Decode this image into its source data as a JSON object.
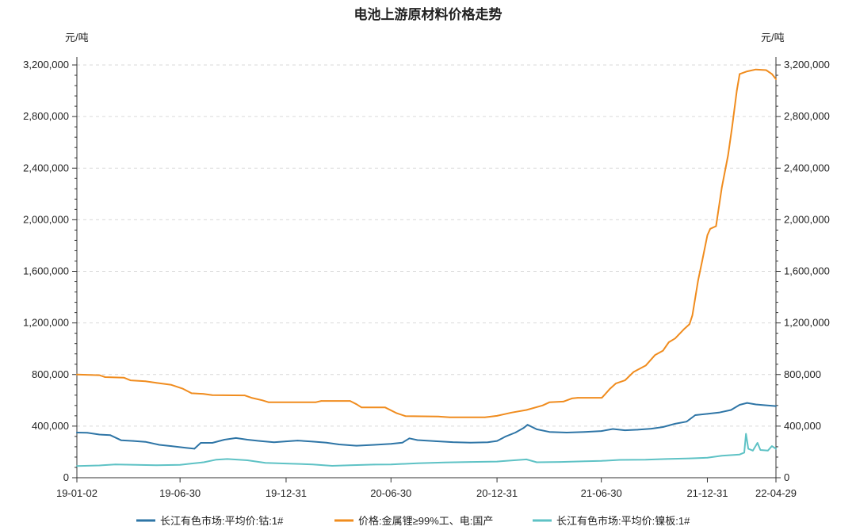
{
  "chart_data": {
    "type": "line",
    "title": "电池上游原材料价格走势",
    "y_unit_left": "元/吨",
    "y_unit_right": "元/吨",
    "ylim": [
      0,
      3200000
    ],
    "y_ticks": [
      0,
      400000,
      800000,
      1200000,
      1600000,
      2000000,
      2400000,
      2800000,
      3200000
    ],
    "y_tick_labels": [
      "0",
      "400,000",
      "800,000",
      "1,200,000",
      "1,600,000",
      "2,000,000",
      "2,400,000",
      "2,800,000",
      "3,200,000"
    ],
    "x_range": [
      "2019-01-02",
      "2022-04-29"
    ],
    "x_ticks": [
      "2019-01-02",
      "2019-06-30",
      "2019-12-31",
      "2020-06-30",
      "2020-12-31",
      "2021-06-30",
      "2021-12-31",
      "2022-04-29"
    ],
    "x_tick_labels": [
      "19-01-02",
      "19-06-30",
      "19-12-31",
      "20-06-30",
      "20-12-31",
      "21-06-30",
      "21-12-31",
      "22-04-29"
    ],
    "grid": true,
    "legend_position": "bottom",
    "colors": {
      "cobalt": "#2e75a6",
      "lithium": "#f08c1e",
      "nickel": "#5ec2c5"
    },
    "series": [
      {
        "name": "长江有色市场:平均价:钴:1#",
        "color": "#2e75a6",
        "points": [
          [
            "2019-01-02",
            350000
          ],
          [
            "2019-01-20",
            348000
          ],
          [
            "2019-02-10",
            335000
          ],
          [
            "2019-03-01",
            330000
          ],
          [
            "2019-03-20",
            290000
          ],
          [
            "2019-04-10",
            285000
          ],
          [
            "2019-05-01",
            278000
          ],
          [
            "2019-05-25",
            255000
          ],
          [
            "2019-06-15",
            245000
          ],
          [
            "2019-07-10",
            232000
          ],
          [
            "2019-07-25",
            225000
          ],
          [
            "2019-08-05",
            270000
          ],
          [
            "2019-08-25",
            270000
          ],
          [
            "2019-09-15",
            295000
          ],
          [
            "2019-10-05",
            308000
          ],
          [
            "2019-10-25",
            295000
          ],
          [
            "2019-11-15",
            285000
          ],
          [
            "2019-12-10",
            275000
          ],
          [
            "2019-12-31",
            282000
          ],
          [
            "2020-01-20",
            288000
          ],
          [
            "2020-02-15",
            280000
          ],
          [
            "2020-03-10",
            272000
          ],
          [
            "2020-04-01",
            258000
          ],
          [
            "2020-05-01",
            248000
          ],
          [
            "2020-06-01",
            255000
          ],
          [
            "2020-06-30",
            262000
          ],
          [
            "2020-07-20",
            272000
          ],
          [
            "2020-08-01",
            305000
          ],
          [
            "2020-08-15",
            292000
          ],
          [
            "2020-09-15",
            283000
          ],
          [
            "2020-10-15",
            276000
          ],
          [
            "2020-11-15",
            272000
          ],
          [
            "2020-12-15",
            275000
          ],
          [
            "2020-12-31",
            285000
          ],
          [
            "2021-01-15",
            320000
          ],
          [
            "2021-02-01",
            350000
          ],
          [
            "2021-02-15",
            385000
          ],
          [
            "2021-02-22",
            410000
          ],
          [
            "2021-03-10",
            375000
          ],
          [
            "2021-04-01",
            355000
          ],
          [
            "2021-05-01",
            350000
          ],
          [
            "2021-06-01",
            355000
          ],
          [
            "2021-06-30",
            362000
          ],
          [
            "2021-07-20",
            378000
          ],
          [
            "2021-08-10",
            368000
          ],
          [
            "2021-09-01",
            372000
          ],
          [
            "2021-09-25",
            380000
          ],
          [
            "2021-10-15",
            393000
          ],
          [
            "2021-11-05",
            418000
          ],
          [
            "2021-11-25",
            435000
          ],
          [
            "2021-12-10",
            485000
          ],
          [
            "2021-12-31",
            495000
          ],
          [
            "2022-01-20",
            505000
          ],
          [
            "2022-02-10",
            525000
          ],
          [
            "2022-02-25",
            565000
          ],
          [
            "2022-03-10",
            580000
          ],
          [
            "2022-03-25",
            568000
          ],
          [
            "2022-04-10",
            562000
          ],
          [
            "2022-04-29",
            555000
          ]
        ]
      },
      {
        "name": "价格:金属锂≥99%工、电:国产",
        "color": "#f08c1e",
        "points": [
          [
            "2019-01-02",
            800000
          ],
          [
            "2019-02-10",
            795000
          ],
          [
            "2019-02-20",
            780000
          ],
          [
            "2019-03-25",
            775000
          ],
          [
            "2019-04-05",
            755000
          ],
          [
            "2019-05-01",
            748000
          ],
          [
            "2019-05-20",
            735000
          ],
          [
            "2019-06-15",
            720000
          ],
          [
            "2019-07-05",
            690000
          ],
          [
            "2019-07-20",
            655000
          ],
          [
            "2019-08-10",
            650000
          ],
          [
            "2019-08-25",
            640000
          ],
          [
            "2019-10-20",
            638000
          ],
          [
            "2019-11-01",
            620000
          ],
          [
            "2019-11-20",
            600000
          ],
          [
            "2019-12-01",
            585000
          ],
          [
            "2020-02-20",
            585000
          ],
          [
            "2020-03-01",
            595000
          ],
          [
            "2020-04-20",
            595000
          ],
          [
            "2020-05-01",
            570000
          ],
          [
            "2020-05-10",
            545000
          ],
          [
            "2020-06-20",
            545000
          ],
          [
            "2020-07-10",
            500000
          ],
          [
            "2020-07-25",
            478000
          ],
          [
            "2020-09-20",
            475000
          ],
          [
            "2020-10-10",
            468000
          ],
          [
            "2020-12-10",
            468000
          ],
          [
            "2020-12-31",
            480000
          ],
          [
            "2021-01-25",
            505000
          ],
          [
            "2021-02-20",
            525000
          ],
          [
            "2021-03-20",
            560000
          ],
          [
            "2021-04-01",
            585000
          ],
          [
            "2021-04-25",
            590000
          ],
          [
            "2021-05-10",
            615000
          ],
          [
            "2021-05-20",
            620000
          ],
          [
            "2021-07-01",
            620000
          ],
          [
            "2021-07-15",
            690000
          ],
          [
            "2021-07-25",
            730000
          ],
          [
            "2021-08-10",
            755000
          ],
          [
            "2021-08-25",
            820000
          ],
          [
            "2021-09-15",
            870000
          ],
          [
            "2021-10-01",
            950000
          ],
          [
            "2021-10-15",
            985000
          ],
          [
            "2021-10-25",
            1050000
          ],
          [
            "2021-11-05",
            1080000
          ],
          [
            "2021-11-20",
            1150000
          ],
          [
            "2021-11-30",
            1190000
          ],
          [
            "2021-12-05",
            1260000
          ],
          [
            "2021-12-15",
            1530000
          ],
          [
            "2021-12-22",
            1680000
          ],
          [
            "2021-12-31",
            1880000
          ],
          [
            "2022-01-05",
            1930000
          ],
          [
            "2022-01-15",
            1950000
          ],
          [
            "2022-01-25",
            2250000
          ],
          [
            "2022-02-05",
            2500000
          ],
          [
            "2022-02-12",
            2720000
          ],
          [
            "2022-02-20",
            3000000
          ],
          [
            "2022-02-25",
            3130000
          ],
          [
            "2022-03-10",
            3150000
          ],
          [
            "2022-03-25",
            3165000
          ],
          [
            "2022-04-12",
            3160000
          ],
          [
            "2022-04-22",
            3130000
          ],
          [
            "2022-04-29",
            3090000
          ]
        ]
      },
      {
        "name": "长江有色市场:平均价:镍板:1#",
        "color": "#5ec2c5",
        "points": [
          [
            "2019-01-02",
            90000
          ],
          [
            "2019-02-10",
            95000
          ],
          [
            "2019-03-10",
            103000
          ],
          [
            "2019-04-15",
            100000
          ],
          [
            "2019-05-20",
            97000
          ],
          [
            "2019-06-30",
            100000
          ],
          [
            "2019-07-20",
            110000
          ],
          [
            "2019-08-10",
            120000
          ],
          [
            "2019-09-01",
            140000
          ],
          [
            "2019-09-20",
            145000
          ],
          [
            "2019-10-25",
            135000
          ],
          [
            "2019-11-25",
            115000
          ],
          [
            "2019-12-31",
            110000
          ],
          [
            "2020-02-15",
            103000
          ],
          [
            "2020-03-20",
            92000
          ],
          [
            "2020-04-20",
            97000
          ],
          [
            "2020-06-01",
            102000
          ],
          [
            "2020-06-30",
            103000
          ],
          [
            "2020-08-15",
            112000
          ],
          [
            "2020-10-01",
            118000
          ],
          [
            "2020-11-15",
            122000
          ],
          [
            "2020-12-31",
            125000
          ],
          [
            "2021-01-20",
            132000
          ],
          [
            "2021-02-20",
            142000
          ],
          [
            "2021-03-10",
            120000
          ],
          [
            "2021-04-20",
            122000
          ],
          [
            "2021-06-01",
            128000
          ],
          [
            "2021-06-30",
            130000
          ],
          [
            "2021-08-01",
            138000
          ],
          [
            "2021-09-15",
            140000
          ],
          [
            "2021-10-20",
            145000
          ],
          [
            "2021-12-01",
            150000
          ],
          [
            "2021-12-31",
            155000
          ],
          [
            "2022-01-25",
            170000
          ],
          [
            "2022-02-25",
            180000
          ],
          [
            "2022-03-05",
            195000
          ],
          [
            "2022-03-08",
            340000
          ],
          [
            "2022-03-12",
            225000
          ],
          [
            "2022-03-20",
            210000
          ],
          [
            "2022-03-28",
            270000
          ],
          [
            "2022-04-02",
            215000
          ],
          [
            "2022-04-15",
            210000
          ],
          [
            "2022-04-22",
            245000
          ],
          [
            "2022-04-29",
            225000
          ]
        ]
      }
    ]
  }
}
